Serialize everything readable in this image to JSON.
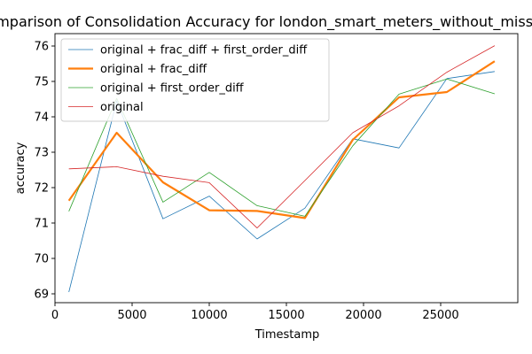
{
  "chart_data": {
    "type": "line",
    "title": "Comparison of Consolidation Accuracy for london_smart_meters_without_missing",
    "xlabel": "Timestamp",
    "ylabel": "accuracy",
    "xlim": [
      0,
      30000
    ],
    "ylim": [
      68.75,
      76.35
    ],
    "xticks": [
      0,
      5000,
      10000,
      15000,
      20000,
      25000
    ],
    "yticks": [
      69,
      70,
      71,
      72,
      73,
      74,
      75,
      76
    ],
    "grid": false,
    "legend_position": "top-left",
    "x": [
      900,
      4000,
      7000,
      10000,
      13100,
      16200,
      19300,
      22300,
      25400,
      28500
    ],
    "series": [
      {
        "name": "original + frac_diff + first_order_diff",
        "color": "#1f77b4",
        "width": "thin",
        "values": [
          69.05,
          74.45,
          71.12,
          71.76,
          70.55,
          71.42,
          73.38,
          73.12,
          75.08,
          75.28
        ]
      },
      {
        "name": "original + frac_diff",
        "color": "#ff7f0e",
        "width": "thick",
        "values": [
          71.63,
          73.55,
          72.15,
          71.36,
          71.34,
          71.14,
          73.35,
          74.55,
          74.7,
          75.57
        ]
      },
      {
        "name": "original + first_order_diff",
        "color": "#2ca02c",
        "width": "thin",
        "values": [
          71.33,
          74.52,
          71.59,
          72.43,
          71.49,
          71.19,
          73.18,
          74.64,
          75.07,
          74.65
        ]
      },
      {
        "name": "original",
        "color": "#d62728",
        "width": "thin",
        "values": [
          72.53,
          72.59,
          72.32,
          72.14,
          70.86,
          72.2,
          73.55,
          74.31,
          75.26,
          76.01
        ]
      }
    ]
  }
}
